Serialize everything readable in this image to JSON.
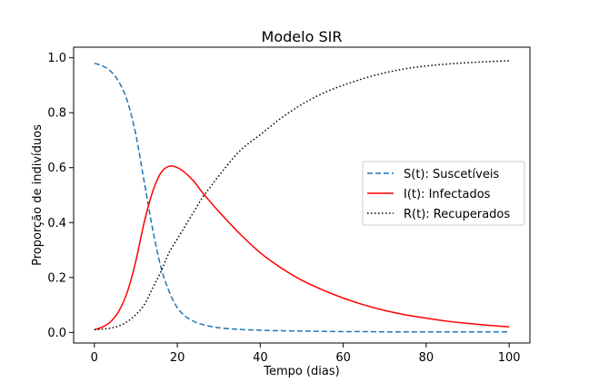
{
  "chart_data": {
    "type": "line",
    "title": "Modelo SIR",
    "xlabel": "Tempo (dias)",
    "ylabel": "Proporção de indivíduos",
    "xlim": [
      -5,
      105
    ],
    "ylim": [
      -0.0385,
      1.0385
    ],
    "xticks": [
      0,
      20,
      40,
      60,
      80,
      100
    ],
    "yticks": [
      0.0,
      0.2,
      0.4,
      0.6,
      0.8,
      1.0
    ],
    "xtick_labels": [
      "0",
      "20",
      "40",
      "60",
      "80",
      "100"
    ],
    "ytick_labels": [
      "0.0",
      "0.2",
      "0.4",
      "0.6",
      "0.8",
      "1.0"
    ],
    "grid": false,
    "legend_position": "center-right",
    "x": [
      0,
      2,
      4,
      6,
      8,
      10,
      12,
      14,
      16,
      18,
      20,
      22,
      24,
      26,
      28,
      30,
      35,
      40,
      45,
      50,
      55,
      60,
      65,
      70,
      75,
      80,
      85,
      90,
      95,
      100
    ],
    "series": [
      {
        "name": "S(t): Suscetíveis",
        "color": "#1f77b4",
        "style": "dashed",
        "values": [
          0.98,
          0.97,
          0.95,
          0.91,
          0.84,
          0.72,
          0.55,
          0.38,
          0.24,
          0.15,
          0.09,
          0.058,
          0.04,
          0.029,
          0.022,
          0.017,
          0.011,
          0.008,
          0.006,
          0.005,
          0.004,
          0.003,
          0.003,
          0.002,
          0.002,
          0.002,
          0.002,
          0.002,
          0.002,
          0.002
        ]
      },
      {
        "name": "I(t): Infectados",
        "color": "#ff0000",
        "style": "solid",
        "values": [
          0.01,
          0.02,
          0.04,
          0.08,
          0.15,
          0.26,
          0.4,
          0.51,
          0.58,
          0.605,
          0.6,
          0.58,
          0.55,
          0.51,
          0.475,
          0.44,
          0.36,
          0.29,
          0.235,
          0.19,
          0.155,
          0.125,
          0.1,
          0.08,
          0.064,
          0.052,
          0.041,
          0.033,
          0.026,
          0.02
        ]
      },
      {
        "name": "R(t): Recuperados",
        "color": "#000000",
        "style": "dotted",
        "values": [
          0.01,
          0.012,
          0.016,
          0.024,
          0.04,
          0.065,
          0.1,
          0.16,
          0.22,
          0.29,
          0.34,
          0.39,
          0.44,
          0.49,
          0.53,
          0.57,
          0.66,
          0.72,
          0.78,
          0.83,
          0.87,
          0.9,
          0.925,
          0.945,
          0.96,
          0.97,
          0.977,
          0.982,
          0.986,
          0.989
        ]
      }
    ]
  }
}
